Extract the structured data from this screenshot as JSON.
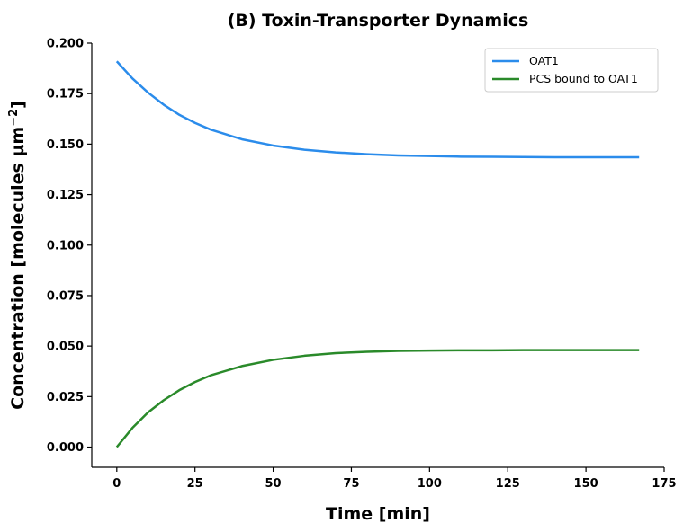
{
  "chart_data": {
    "type": "line",
    "title": "(B) Toxin-Transporter Dynamics",
    "xlabel": "Time [min]",
    "ylabel_main": "Concentration [molecules µm",
    "ylabel_sup": "−2",
    "ylabel_close": "]",
    "xlim": [
      -8,
      175
    ],
    "ylim": [
      -0.01,
      0.2
    ],
    "x_ticks": [
      0,
      25,
      50,
      75,
      100,
      125,
      150,
      175
    ],
    "x_tick_labels": [
      "0",
      "25",
      "50",
      "75",
      "100",
      "125",
      "150",
      "175"
    ],
    "y_ticks": [
      0.0,
      0.025,
      0.05,
      0.075,
      0.1,
      0.125,
      0.15,
      0.175,
      0.2
    ],
    "y_tick_labels": [
      "0.000",
      "0.025",
      "0.050",
      "0.075",
      "0.100",
      "0.125",
      "0.150",
      "0.175",
      "0.200"
    ],
    "grid": false,
    "legend_position": "top-right",
    "series": [
      {
        "name": "OAT1",
        "color": "#2b8ceb",
        "x": [
          0,
          5,
          10,
          15,
          20,
          25,
          30,
          40,
          50,
          60,
          70,
          80,
          90,
          100,
          110,
          120,
          130,
          140,
          150,
          160,
          167
        ],
        "y": [
          0.191,
          0.1825,
          0.1755,
          0.1695,
          0.1645,
          0.1605,
          0.1572,
          0.1524,
          0.1493,
          0.1472,
          0.1459,
          0.145,
          0.1444,
          0.1441,
          0.1438,
          0.1437,
          0.1436,
          0.1435,
          0.1435,
          0.1435,
          0.1435
        ]
      },
      {
        "name": "PCS bound to OAT1",
        "color": "#2a8a2a",
        "x": [
          0,
          5,
          10,
          15,
          20,
          25,
          30,
          40,
          50,
          60,
          70,
          80,
          90,
          100,
          110,
          120,
          130,
          140,
          150,
          160,
          167
        ],
        "y": [
          0.0,
          0.0095,
          0.0172,
          0.0232,
          0.0282,
          0.0322,
          0.0355,
          0.0401,
          0.0432,
          0.0452,
          0.0465,
          0.0472,
          0.0476,
          0.0478,
          0.0479,
          0.0479,
          0.048,
          0.048,
          0.048,
          0.048,
          0.048
        ]
      }
    ]
  }
}
